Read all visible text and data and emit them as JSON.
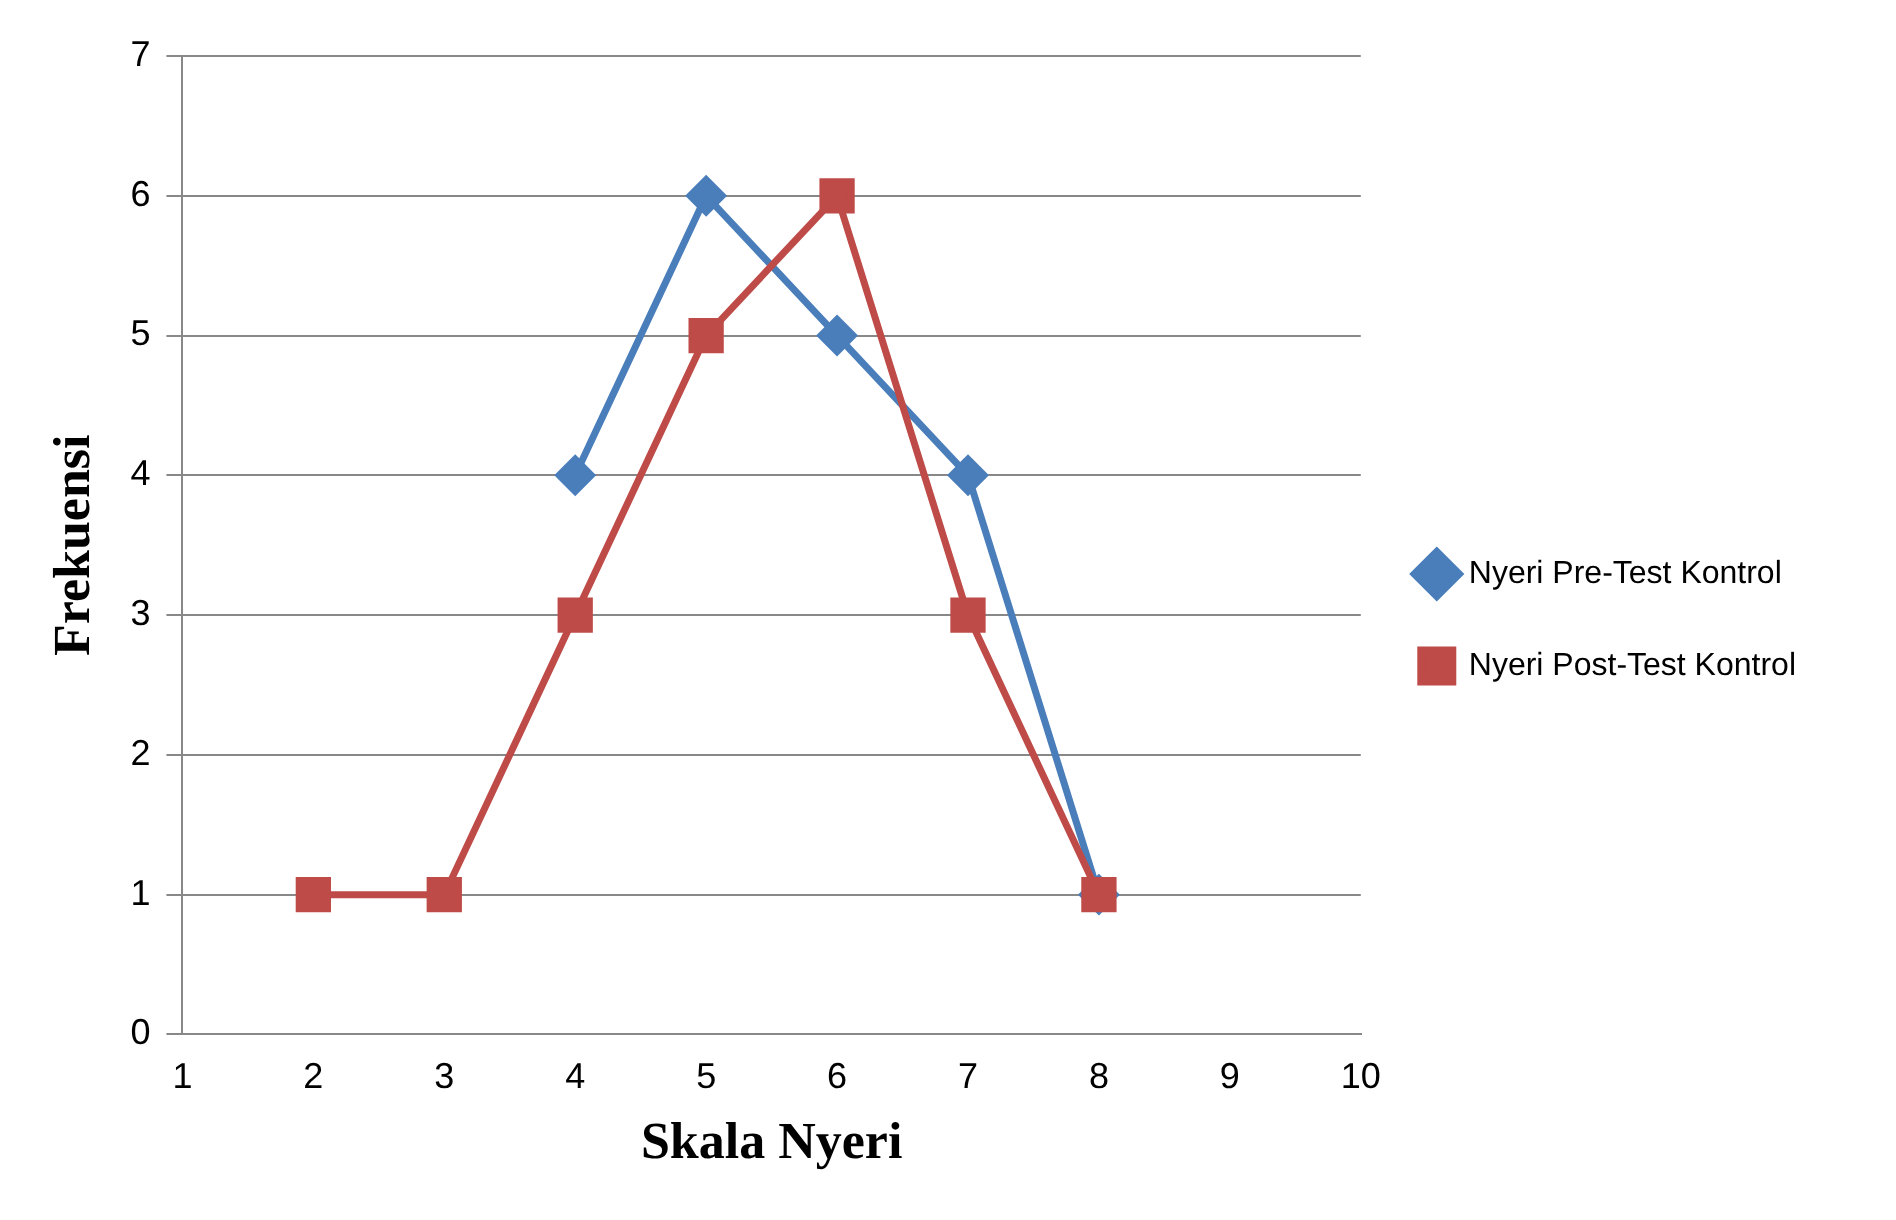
{
  "chart_data": {
    "type": "line",
    "xlabel": "Skala Nyeri",
    "ylabel": "Frekuensi",
    "categories": [
      "1",
      "2",
      "3",
      "4",
      "5",
      "6",
      "7",
      "8",
      "9",
      "10"
    ],
    "series": [
      {
        "name": "Nyeri Pre-Test Kontrol",
        "color": "#4a7ebb",
        "marker": "diamond",
        "values": [
          null,
          null,
          null,
          4,
          6,
          5,
          4,
          1,
          null,
          null
        ]
      },
      {
        "name": "Nyeri Post-Test Kontrol",
        "color": "#be4b48",
        "marker": "square",
        "values": [
          null,
          1,
          1,
          3,
          5,
          6,
          3,
          1,
          null,
          null
        ]
      }
    ],
    "ylim": [
      0,
      7
    ],
    "yticks": [
      0,
      1,
      2,
      3,
      4,
      5,
      6,
      7
    ],
    "grid": "y",
    "legend": "right",
    "line_style": "solid"
  }
}
